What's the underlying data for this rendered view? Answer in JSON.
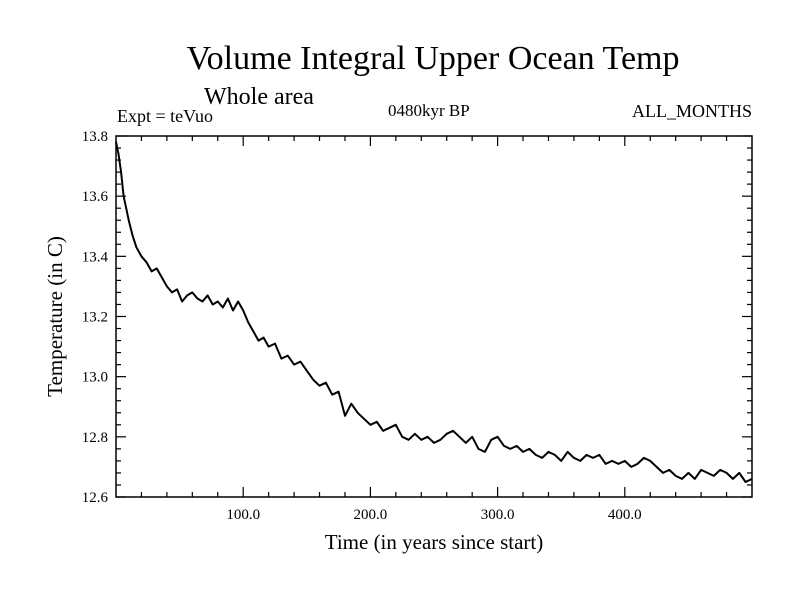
{
  "header": {
    "title": "Volume Integral Upper Ocean Temp",
    "subtitle": "Whole area",
    "experiment": "Expt = teVuo",
    "period": "0480kyr BP",
    "months": "ALL_MONTHS"
  },
  "chart_data": {
    "type": "line",
    "title": "Volume Integral Upper Ocean Temp",
    "subtitle": "Whole area",
    "xlabel": "Time (in years since start)",
    "ylabel": "Temperature (in C)",
    "xlim": [
      0,
      500
    ],
    "ylim": [
      12.6,
      13.8
    ],
    "xticks": [
      100,
      200,
      300,
      400
    ],
    "xtick_labels": [
      "100.0",
      "200.0",
      "300.0",
      "400.0"
    ],
    "yticks": [
      12.6,
      12.8,
      13.0,
      13.2,
      13.4,
      13.6,
      13.8
    ],
    "ytick_labels": [
      "12.6",
      "12.8",
      "13.0",
      "13.2",
      "13.4",
      "13.6",
      "13.8"
    ],
    "grid": false,
    "legend": "none",
    "line_color": "#000000",
    "series": [
      {
        "x": [
          0,
          2,
          4,
          6,
          8,
          10,
          13,
          16,
          20,
          24,
          28,
          32,
          36,
          40,
          44,
          48,
          52,
          56,
          60,
          64,
          68,
          72,
          76,
          80,
          84,
          88,
          92,
          96,
          100,
          104,
          108,
          112,
          116,
          120,
          125,
          130,
          135,
          140,
          145,
          150,
          155,
          160,
          165,
          170,
          175,
          180,
          185,
          190,
          195,
          200,
          205,
          210,
          215,
          220,
          225,
          230,
          235,
          240,
          245,
          250,
          255,
          260,
          265,
          270,
          275,
          280,
          285,
          290,
          295,
          300,
          305,
          310,
          315,
          320,
          325,
          330,
          335,
          340,
          345,
          350,
          355,
          360,
          365,
          370,
          375,
          380,
          385,
          390,
          395,
          400,
          405,
          410,
          415,
          420,
          425,
          430,
          435,
          440,
          445,
          450,
          455,
          460,
          465,
          470,
          475,
          480,
          485,
          490,
          495,
          500
        ],
        "y": [
          13.78,
          13.74,
          13.68,
          13.6,
          13.56,
          13.52,
          13.47,
          13.43,
          13.4,
          13.38,
          13.35,
          13.36,
          13.33,
          13.3,
          13.28,
          13.29,
          13.25,
          13.27,
          13.28,
          13.26,
          13.25,
          13.27,
          13.24,
          13.25,
          13.23,
          13.26,
          13.22,
          13.25,
          13.22,
          13.18,
          13.15,
          13.12,
          13.13,
          13.1,
          13.11,
          13.06,
          13.07,
          13.04,
          13.05,
          13.02,
          12.99,
          12.97,
          12.98,
          12.94,
          12.95,
          12.87,
          12.91,
          12.88,
          12.86,
          12.84,
          12.85,
          12.82,
          12.83,
          12.84,
          12.8,
          12.79,
          12.81,
          12.79,
          12.8,
          12.78,
          12.79,
          12.81,
          12.82,
          12.8,
          12.78,
          12.8,
          12.76,
          12.75,
          12.79,
          12.8,
          12.77,
          12.76,
          12.77,
          12.75,
          12.76,
          12.74,
          12.73,
          12.75,
          12.74,
          12.72,
          12.75,
          12.73,
          12.72,
          12.74,
          12.73,
          12.74,
          12.71,
          12.72,
          12.71,
          12.72,
          12.7,
          12.71,
          12.73,
          12.72,
          12.7,
          12.68,
          12.69,
          12.67,
          12.66,
          12.68,
          12.66,
          12.69,
          12.68,
          12.67,
          12.69,
          12.68,
          12.66,
          12.68,
          12.65,
          12.66
        ]
      }
    ]
  }
}
